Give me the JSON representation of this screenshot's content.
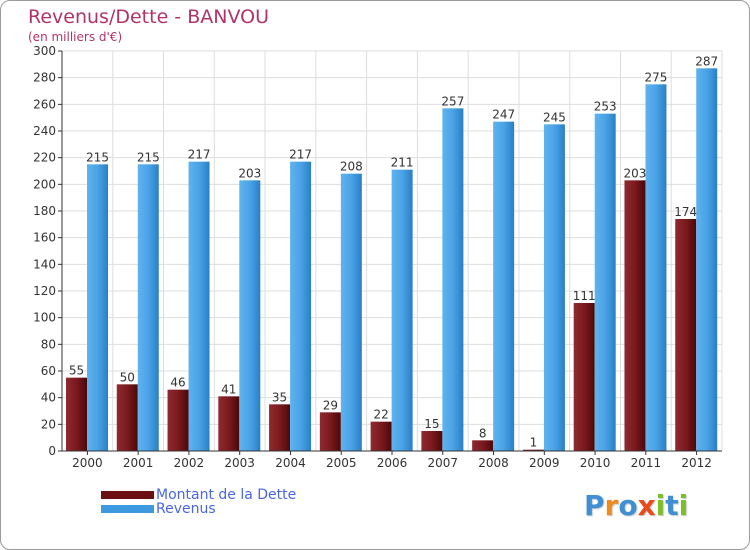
{
  "title": "Revenus/Dette - BANVOU",
  "subtitle": "(en milliers d'€)",
  "logo": {
    "letters": [
      "P",
      "r",
      "o",
      "x",
      "i",
      "t",
      "i"
    ],
    "colors": [
      "#3f8fd2",
      "#f08a1c",
      "#3f8fd2",
      "#e84c1a",
      "#7bbf2a",
      "#3f8fd2",
      "#7bbf2a"
    ]
  },
  "colors": {
    "title": "#b0346a",
    "dette": "#7a1a1e",
    "revenus": "#4aa3e6",
    "grid": "#dddddd",
    "axis": "#333333"
  },
  "legend": [
    {
      "label": "Montant de la Dette",
      "color": "#6b0f12"
    },
    {
      "label": "Revenus",
      "color": "#3d9ae0"
    }
  ],
  "chart_data": {
    "type": "bar",
    "title": "Revenus/Dette - BANVOU",
    "ylabel": "(en milliers d'€)",
    "categories": [
      "2000",
      "2001",
      "2002",
      "2003",
      "2004",
      "2005",
      "2006",
      "2007",
      "2008",
      "2009",
      "2010",
      "2011",
      "2012"
    ],
    "series": [
      {
        "name": "Montant de la Dette",
        "values": [
          55,
          50,
          46,
          41,
          35,
          29,
          22,
          15,
          8,
          1,
          111,
          203,
          174
        ]
      },
      {
        "name": "Revenus",
        "values": [
          215,
          215,
          217,
          203,
          217,
          208,
          211,
          257,
          247,
          245,
          253,
          275,
          287
        ]
      }
    ],
    "ylim": [
      0,
      300
    ],
    "yticks": [
      0,
      20,
      40,
      60,
      80,
      100,
      120,
      140,
      160,
      180,
      200,
      220,
      240,
      260,
      280,
      300
    ],
    "grid": true
  }
}
